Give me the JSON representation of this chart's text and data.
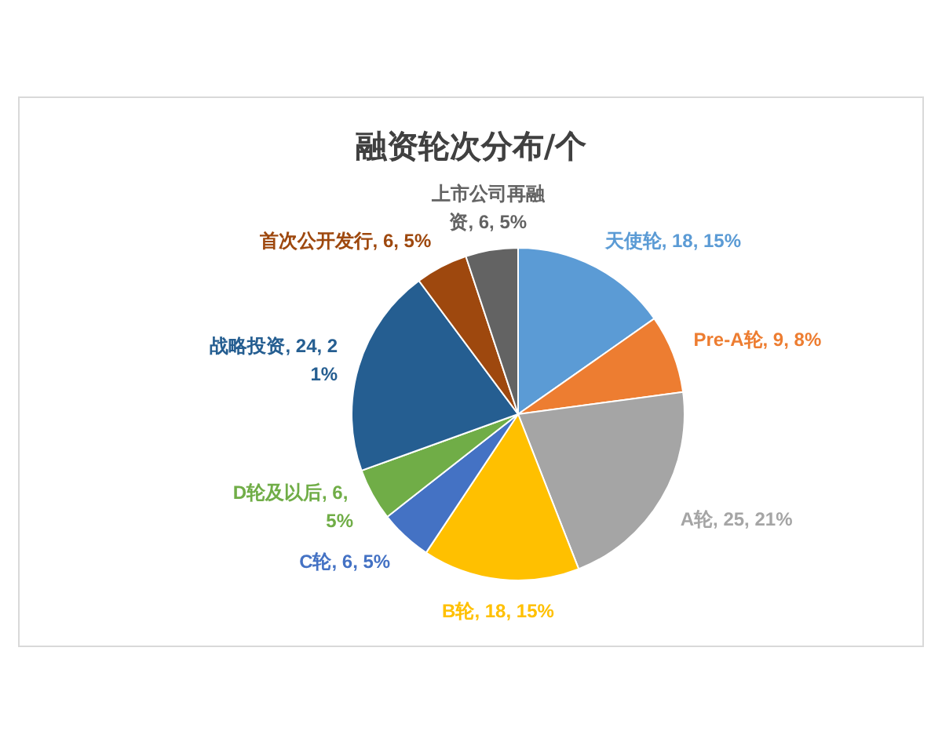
{
  "chart_data": {
    "type": "pie",
    "title": "融资轮次分布/个",
    "categories": [
      "天使轮",
      "Pre-A轮",
      "A轮",
      "B轮",
      "C轮",
      "D轮及以后",
      "战略投资",
      "首次公开发行",
      "上市公司再融资"
    ],
    "values": [
      18,
      9,
      25,
      18,
      6,
      6,
      24,
      6,
      6
    ],
    "colors": [
      "#5b9bd5",
      "#ed7d31",
      "#a5a5a5",
      "#ffc000",
      "#4472c4",
      "#70ad47",
      "#255e91",
      "#9e480e",
      "#636363"
    ],
    "value_labels": [
      "18, 15%",
      "9, 8%",
      "25, 21%",
      "18, 15%",
      "6, 5%",
      "6, 5%",
      "24, 21%",
      "6, 5%",
      "6, 5%"
    ]
  }
}
